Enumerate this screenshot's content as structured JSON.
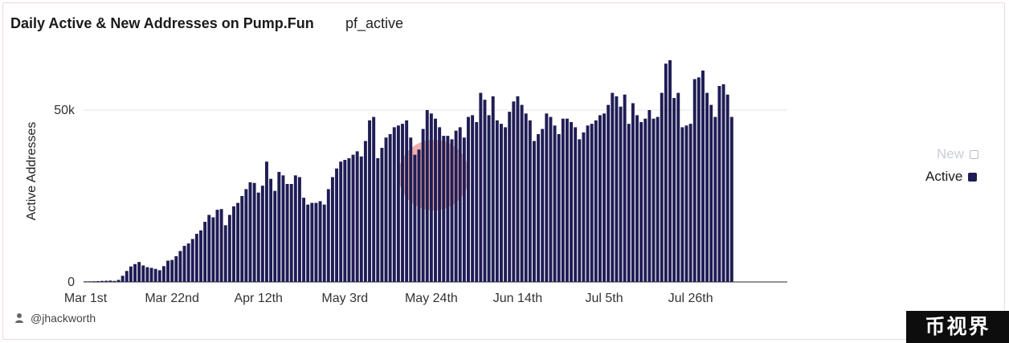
{
  "header": {
    "title": "Daily Active & New Addresses on Pump.Fun",
    "subtitle": "pf_active"
  },
  "credit": {
    "text": "@jhackworth",
    "icon": "user-icon"
  },
  "badge": {
    "text": "币视界"
  },
  "colors": {
    "active": "#1f1d55",
    "new_outline": "#b8bcc6",
    "watermark": "#e07070",
    "grid": "#e6e6e6"
  },
  "chart_data": {
    "type": "bar",
    "title": "Daily Active & New Addresses on Pump.Fun",
    "ylabel": "Active Addresses",
    "xlabel": "",
    "ylim": [
      0,
      65000
    ],
    "yticks": [
      {
        "value": 0,
        "label": "0"
      },
      {
        "value": 50000,
        "label": "50k"
      }
    ],
    "xticks": [
      {
        "date": "2024-03-01",
        "label": "Mar 1st"
      },
      {
        "date": "2024-03-22",
        "label": "Mar 22nd"
      },
      {
        "date": "2024-04-12",
        "label": "Apr 12th"
      },
      {
        "date": "2024-05-03",
        "label": "May 3rd"
      },
      {
        "date": "2024-05-24",
        "label": "May 24th"
      },
      {
        "date": "2024-06-14",
        "label": "Jun 14th"
      },
      {
        "date": "2024-07-05",
        "label": "Jul 5th"
      },
      {
        "date": "2024-07-26",
        "label": "Jul 26th"
      }
    ],
    "grid": true,
    "legend_position": "right",
    "x_start": "2024-03-01",
    "x_end": "2024-08-18",
    "series": [
      {
        "name": "New",
        "values": [],
        "style": "outline"
      },
      {
        "name": "Active",
        "values": [
          150,
          160,
          200,
          250,
          300,
          350,
          400,
          300,
          600,
          1800,
          3200,
          4500,
          5200,
          5800,
          4800,
          4300,
          4100,
          3800,
          3400,
          4600,
          6200,
          6400,
          7500,
          9000,
          10500,
          11200,
          12500,
          14000,
          15000,
          17500,
          19500,
          18800,
          21000,
          21200,
          16500,
          19500,
          22000,
          23000,
          25000,
          27000,
          29000,
          28800,
          26000,
          28000,
          35000,
          30000,
          26500,
          32000,
          31000,
          28500,
          28500,
          31000,
          30500,
          24500,
          22500,
          23000,
          23000,
          23500,
          22500,
          27000,
          30500,
          33000,
          35000,
          35500,
          36000,
          37000,
          38000,
          36500,
          41000,
          47000,
          48000,
          36000,
          39000,
          42000,
          43000,
          45000,
          45500,
          46000,
          47000,
          42000,
          37000,
          38500,
          44500,
          50000,
          49000,
          47500,
          45000,
          42500,
          42500,
          41500,
          44000,
          45000,
          42000,
          48000,
          48500,
          46500,
          55000,
          53000,
          48500,
          54000,
          47000,
          46000,
          45000,
          49500,
          52500,
          54000,
          51500,
          49000,
          47000,
          41000,
          43000,
          44500,
          49000,
          48000,
          45500,
          43000,
          47500,
          47500,
          46500,
          45000,
          41500,
          43500,
          45500,
          46000,
          47000,
          48500,
          49000,
          51500,
          55000,
          54000,
          51000,
          54500,
          46000,
          52000,
          48500,
          46500,
          47500,
          50000,
          47500,
          48000,
          55000,
          63500,
          64500,
          53500,
          55000,
          45000,
          45500,
          46000,
          59000,
          59500,
          61500,
          55000,
          51500,
          48000,
          57000,
          57500,
          54500,
          48000
        ]
      }
    ]
  }
}
